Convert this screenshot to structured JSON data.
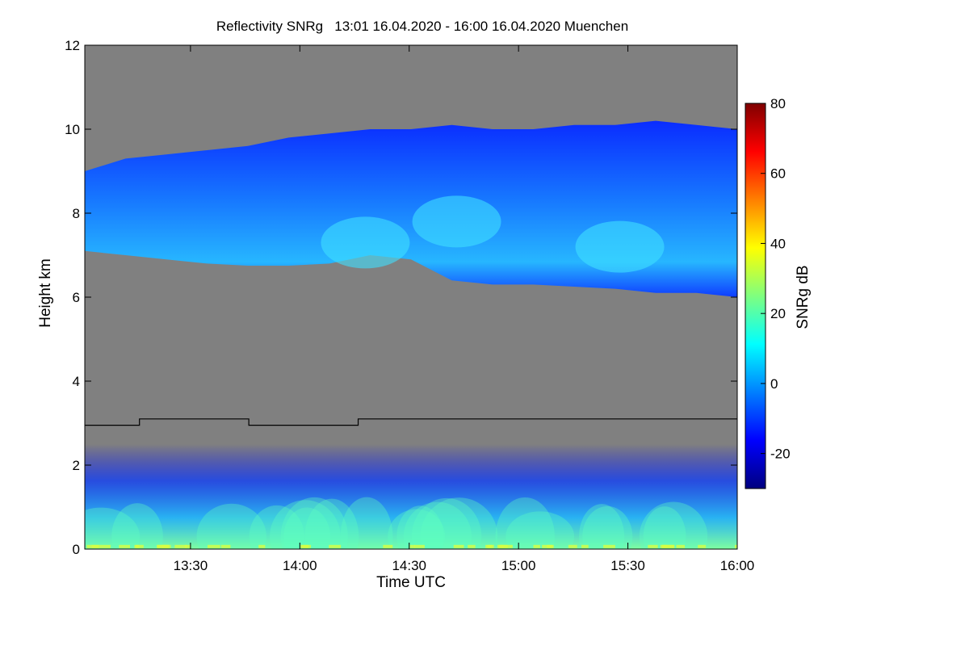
{
  "chart_data": {
    "type": "heatmap",
    "title": "Reflectivity SNRg   13:01 16.04.2020 - 16:00 16.04.2020 Muenchen",
    "xlabel": "Time UTC",
    "ylabel": "Height km",
    "colorbar_label": "SNRg dB",
    "x_range": [
      "13:01",
      "16:00"
    ],
    "x_ticks": [
      "13:30",
      "14:00",
      "14:30",
      "15:00",
      "15:30",
      "16:00"
    ],
    "ylim": [
      0,
      12
    ],
    "y_ticks": [
      0,
      2,
      4,
      6,
      8,
      10,
      12
    ],
    "colorbar_range": [
      -30,
      80
    ],
    "colorbar_ticks": [
      -20,
      0,
      20,
      40,
      60,
      80
    ],
    "no_signal_color": "#808080",
    "colormap": [
      "#00007f",
      "#0000ff",
      "#007fff",
      "#00ffff",
      "#7fff7f",
      "#ffff00",
      "#ff7f00",
      "#ff0000",
      "#7f0000"
    ],
    "cloud_layer": {
      "height_bottom_km": [
        7.1,
        7.0,
        6.9,
        6.8,
        6.75,
        6.75,
        6.8,
        7.0,
        6.9,
        6.4,
        6.3,
        6.3,
        6.25,
        6.2,
        6.1,
        6.1,
        6.0
      ],
      "height_top_km": [
        9.0,
        9.3,
        9.4,
        9.5,
        9.6,
        9.8,
        9.9,
        10.0,
        10.0,
        10.1,
        10.0,
        10.0,
        10.1,
        10.1,
        10.2,
        10.1,
        10.0
      ],
      "peak_snr_db": 10
    },
    "boundary_layer": {
      "height_top_km": 2.5,
      "peak_snr_db": 35
    },
    "line_series": {
      "name": "",
      "color": "#000000",
      "points": [
        [
          "13:01",
          2.95
        ],
        [
          "13:16",
          2.95
        ],
        [
          "13:16",
          3.1
        ],
        [
          "13:46",
          3.1
        ],
        [
          "13:46",
          2.95
        ],
        [
          "14:16",
          2.95
        ],
        [
          "14:16",
          3.1
        ],
        [
          "16:00",
          3.1
        ]
      ]
    }
  }
}
